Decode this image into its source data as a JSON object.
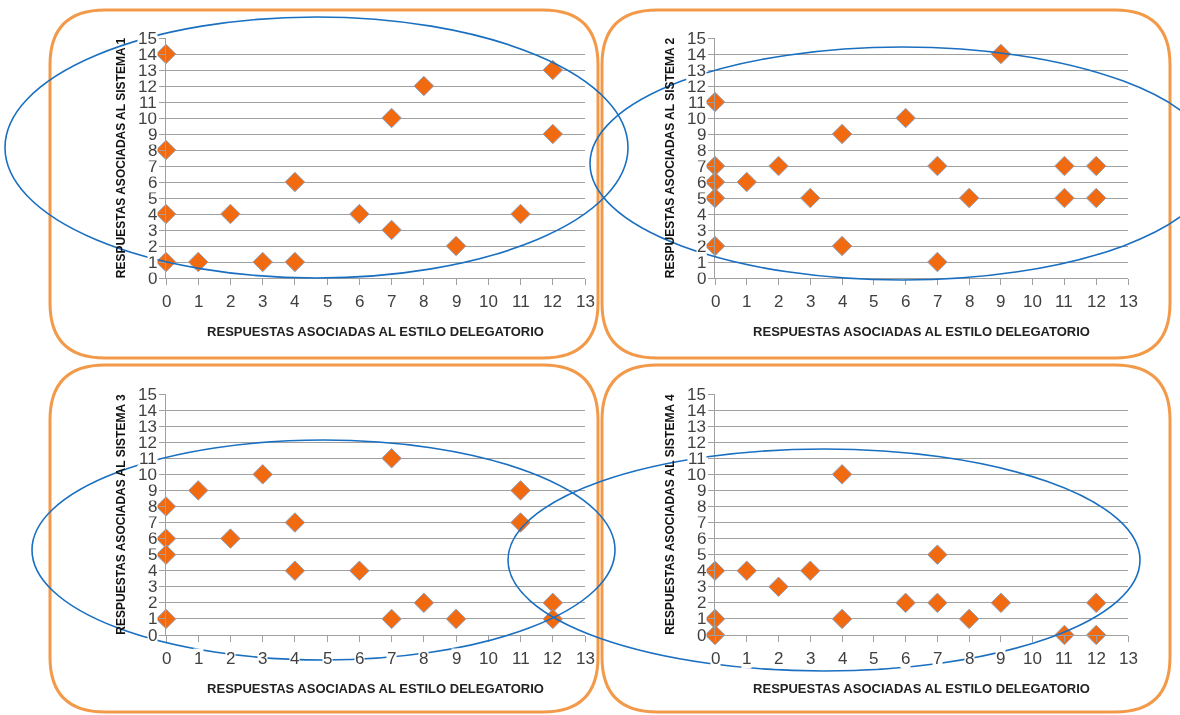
{
  "chart_data": [
    {
      "type": "scatter",
      "xlabel": "RESPUESTAS ASOCIADAS AL ESTILO DELEGATORIO",
      "ylabel": "RESPUESTAS ASOCIADAS AL SISTEMA 1",
      "marker": "diamond",
      "color": "#f26a10",
      "grid": "y",
      "x": [
        0,
        0,
        0,
        0,
        1,
        2,
        3,
        4,
        4,
        6,
        7,
        7,
        8,
        9,
        11,
        12,
        12
      ],
      "values": [
        14,
        8,
        4,
        1,
        1,
        4,
        1,
        1,
        6,
        4,
        10,
        3,
        12,
        2,
        4,
        13,
        9
      ],
      "xlim": [
        0,
        13
      ],
      "xticks": [
        0,
        1,
        2,
        3,
        4,
        5,
        6,
        7,
        8,
        9,
        10,
        11,
        12,
        13
      ],
      "ylim": [
        0,
        15
      ],
      "yticks": [
        0,
        1,
        2,
        3,
        4,
        5,
        6,
        7,
        8,
        9,
        10,
        11,
        12,
        13,
        14,
        15
      ]
    },
    {
      "type": "scatter",
      "xlabel": "RESPUESTAS ASOCIADAS AL ESTILO DELEGATORIO",
      "ylabel": "RESPUESTAS ASOCIADAS AL SISTEMA 2",
      "marker": "diamond",
      "color": "#f26a10",
      "grid": "y",
      "x": [
        0,
        0,
        0,
        0,
        0,
        1,
        2,
        3,
        4,
        4,
        6,
        7,
        7,
        8,
        9,
        11,
        11,
        12,
        12
      ],
      "values": [
        11,
        7,
        6,
        5,
        2,
        6,
        7,
        5,
        9,
        2,
        10,
        7,
        1,
        5,
        14,
        7,
        5,
        7,
        5
      ],
      "xlim": [
        0,
        13
      ],
      "xticks": [
        0,
        1,
        2,
        3,
        4,
        5,
        6,
        7,
        8,
        9,
        10,
        11,
        12,
        13
      ],
      "ylim": [
        0,
        15
      ],
      "yticks": [
        0,
        1,
        2,
        3,
        4,
        5,
        6,
        7,
        8,
        9,
        10,
        11,
        12,
        13,
        14,
        15
      ]
    },
    {
      "type": "scatter",
      "xlabel": "RESPUESTAS ASOCIADAS AL ESTILO DELEGATORIO",
      "ylabel": "RESPUESTAS ASOCIADAS AL SISTEMA 3",
      "marker": "diamond",
      "color": "#f26a10",
      "grid": "y",
      "x": [
        0,
        0,
        0,
        0,
        1,
        2,
        3,
        4,
        4,
        6,
        7,
        7,
        8,
        9,
        11,
        11,
        12,
        12
      ],
      "values": [
        8,
        6,
        5,
        1,
        9,
        6,
        10,
        7,
        4,
        4,
        11,
        1,
        2,
        1,
        9,
        7,
        2,
        1
      ],
      "xlim": [
        0,
        13
      ],
      "xticks": [
        0,
        1,
        2,
        3,
        4,
        5,
        6,
        7,
        8,
        9,
        10,
        11,
        12,
        13
      ],
      "ylim": [
        0,
        15
      ],
      "yticks": [
        0,
        1,
        2,
        3,
        4,
        5,
        6,
        7,
        8,
        9,
        10,
        11,
        12,
        13,
        14,
        15
      ]
    },
    {
      "type": "scatter",
      "xlabel": "RESPUESTAS ASOCIADAS AL ESTILO DELEGATORIO",
      "ylabel": "RESPUESTAS ASOCIADAS AL SISTEMA 4",
      "marker": "diamond",
      "color": "#f26a10",
      "grid": "y",
      "x": [
        0,
        0,
        0,
        1,
        2,
        3,
        4,
        4,
        6,
        7,
        7,
        8,
        9,
        11,
        12,
        12
      ],
      "values": [
        4,
        1,
        0,
        4,
        3,
        4,
        10,
        1,
        2,
        5,
        2,
        1,
        2,
        0,
        2,
        0
      ],
      "xlim": [
        0,
        13
      ],
      "xticks": [
        0,
        1,
        2,
        3,
        4,
        5,
        6,
        7,
        8,
        9,
        10,
        11,
        12,
        13
      ],
      "ylim": [
        0,
        15
      ],
      "yticks": [
        0,
        1,
        2,
        3,
        4,
        5,
        6,
        7,
        8,
        9,
        10,
        11,
        12,
        13,
        14,
        15
      ]
    }
  ]
}
